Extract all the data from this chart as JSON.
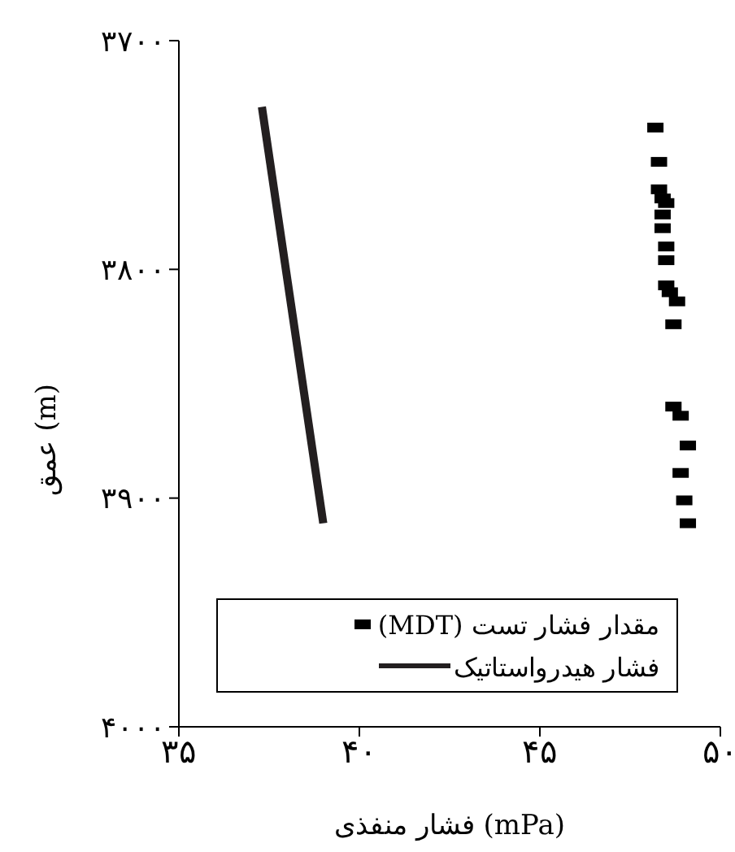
{
  "chart_data": {
    "type": "scatter",
    "xlabel": "فشار منفذی (mPa)",
    "ylabel": "عمق (m)",
    "xlim": [
      35,
      50
    ],
    "xticks": [
      {
        "value": 35,
        "label": "۳۵"
      },
      {
        "value": 40,
        "label": "۴۰"
      },
      {
        "value": 45,
        "label": "۴۵"
      },
      {
        "value": 50,
        "label": "۵۰"
      }
    ],
    "ylim": [
      4000,
      3700
    ],
    "yticks": [
      {
        "value": 3700,
        "label": "۳۷۰۰"
      },
      {
        "value": 3800,
        "label": "۳۸۰۰"
      },
      {
        "value": 3900,
        "label": "۳۹۰۰"
      },
      {
        "value": 4000,
        "label": "۴۰۰۰"
      }
    ],
    "grid": false,
    "legend": "bottom",
    "marker": "square",
    "series": [
      {
        "name": "مقدار فشار تست (MDT)",
        "color": "#000000",
        "x": [
          48.2,
          48.3,
          48.3,
          48.4,
          48.5,
          48.4,
          48.4,
          48.5,
          48.5,
          48.5,
          48.6,
          48.8,
          48.7,
          48.7,
          48.9,
          49.1,
          48.9,
          49.0,
          49.1
        ],
        "values": [
          3738,
          3753,
          3765,
          3769,
          3771,
          3776,
          3782,
          3790,
          3796,
          3807,
          3810,
          3814,
          3824,
          3860,
          3864,
          3877,
          3889,
          3901,
          3911
        ]
      },
      {
        "name": "فشار هیدرواستاتیک",
        "type": "line",
        "color": "#231f20",
        "marker": "none",
        "line_style": "solid",
        "x": [
          37.3,
          39.0
        ],
        "values": [
          3729,
          3911
        ]
      }
    ]
  }
}
